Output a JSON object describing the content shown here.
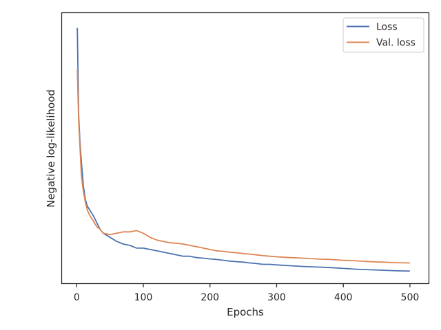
{
  "chart_data": {
    "type": "line",
    "xlabel": "Epochs",
    "ylabel": "Negative log-likelihood",
    "xlim": [
      -22,
      528
    ],
    "ylim": [
      0.0,
      1.0
    ],
    "xticks": [
      0,
      100,
      200,
      300,
      400,
      500
    ],
    "yticks_shown": false,
    "grid": false,
    "legend_position": "top-right",
    "series": [
      {
        "name": "Loss",
        "color": "#4c72b0",
        "x": [
          1,
          3,
          5,
          7,
          10,
          13,
          16,
          20,
          25,
          30,
          35,
          40,
          50,
          60,
          70,
          80,
          90,
          100,
          110,
          120,
          130,
          140,
          150,
          160,
          170,
          180,
          190,
          200,
          210,
          220,
          230,
          240,
          250,
          260,
          270,
          280,
          290,
          300,
          320,
          340,
          360,
          380,
          400,
          420,
          440,
          460,
          480,
          500
        ],
        "y": [
          0.945,
          0.62,
          0.52,
          0.45,
          0.36,
          0.31,
          0.285,
          0.27,
          0.25,
          0.225,
          0.2,
          0.185,
          0.17,
          0.155,
          0.145,
          0.14,
          0.13,
          0.13,
          0.125,
          0.12,
          0.115,
          0.11,
          0.105,
          0.1,
          0.1,
          0.095,
          0.093,
          0.09,
          0.088,
          0.085,
          0.082,
          0.08,
          0.078,
          0.075,
          0.073,
          0.07,
          0.07,
          0.068,
          0.065,
          0.062,
          0.06,
          0.058,
          0.055,
          0.052,
          0.05,
          0.048,
          0.046,
          0.045
        ]
      },
      {
        "name": "Val. loss",
        "color": "#dd8452",
        "x": [
          1,
          3,
          5,
          7,
          10,
          13,
          16,
          20,
          25,
          30,
          35,
          40,
          50,
          60,
          70,
          80,
          90,
          100,
          110,
          120,
          130,
          140,
          150,
          160,
          170,
          180,
          190,
          200,
          210,
          220,
          230,
          240,
          250,
          260,
          270,
          280,
          290,
          300,
          320,
          340,
          360,
          380,
          400,
          420,
          440,
          460,
          480,
          500
        ],
        "y": [
          0.79,
          0.6,
          0.5,
          0.4,
          0.34,
          0.3,
          0.27,
          0.25,
          0.23,
          0.21,
          0.2,
          0.185,
          0.18,
          0.185,
          0.19,
          0.19,
          0.195,
          0.185,
          0.17,
          0.16,
          0.155,
          0.15,
          0.148,
          0.145,
          0.14,
          0.135,
          0.13,
          0.125,
          0.12,
          0.118,
          0.115,
          0.113,
          0.11,
          0.108,
          0.105,
          0.102,
          0.1,
          0.098,
          0.095,
          0.093,
          0.09,
          0.088,
          0.085,
          0.083,
          0.08,
          0.078,
          0.076,
          0.075
        ]
      }
    ]
  }
}
